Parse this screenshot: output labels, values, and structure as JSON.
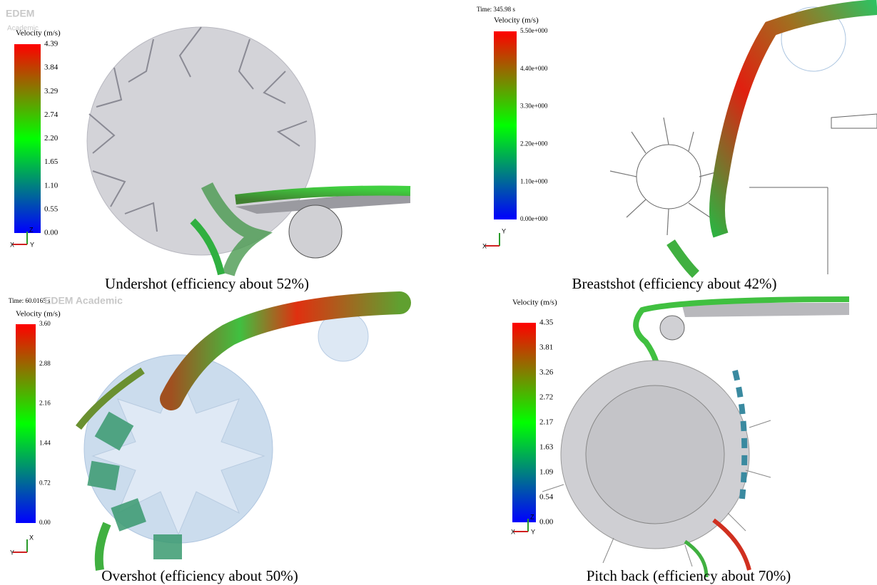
{
  "panels": [
    {
      "logo": "EDEM",
      "logo_sub": "Academic",
      "legend_title": "Velocity (m/s)",
      "ticks": [
        "4.39",
        "3.84",
        "3.29",
        "2.74",
        "2.20",
        "1.65",
        "1.10",
        "0.55",
        "0.00"
      ],
      "axis_labels": [
        "Z",
        "X",
        "Y"
      ],
      "caption": "Undershot (efficiency about 52%)"
    },
    {
      "time": "Time: 345.98 s",
      "legend_title": "Velocity (m/s)",
      "ticks": [
        "5.50e+000",
        "4.40e+000",
        "3.30e+000",
        "2.20e+000",
        "1.10e+000",
        "0.00e+000"
      ],
      "axis_labels": [
        "Y",
        "X"
      ],
      "caption": "Breastshot (efficiency about 42%)"
    },
    {
      "time": "Time: 60.0165 s",
      "logo": "EDEM Academic",
      "legend_title": "Velocity (m/s)",
      "ticks": [
        "3.60",
        "2.88",
        "2.16",
        "1.44",
        "0.72",
        "0.00"
      ],
      "axis_labels": [
        "X",
        "Y"
      ],
      "caption": "Overshot (efficiency about 50%)"
    },
    {
      "legend_title": "Velocity (m/s)",
      "ticks": [
        "4.35",
        "3.81",
        "3.26",
        "2.72",
        "2.17",
        "1.63",
        "1.09",
        "0.54",
        "0.00"
      ],
      "axis_labels": [
        "Z",
        "X",
        "Y"
      ],
      "caption": "Pitch back (efficiency about 70%)"
    }
  ]
}
